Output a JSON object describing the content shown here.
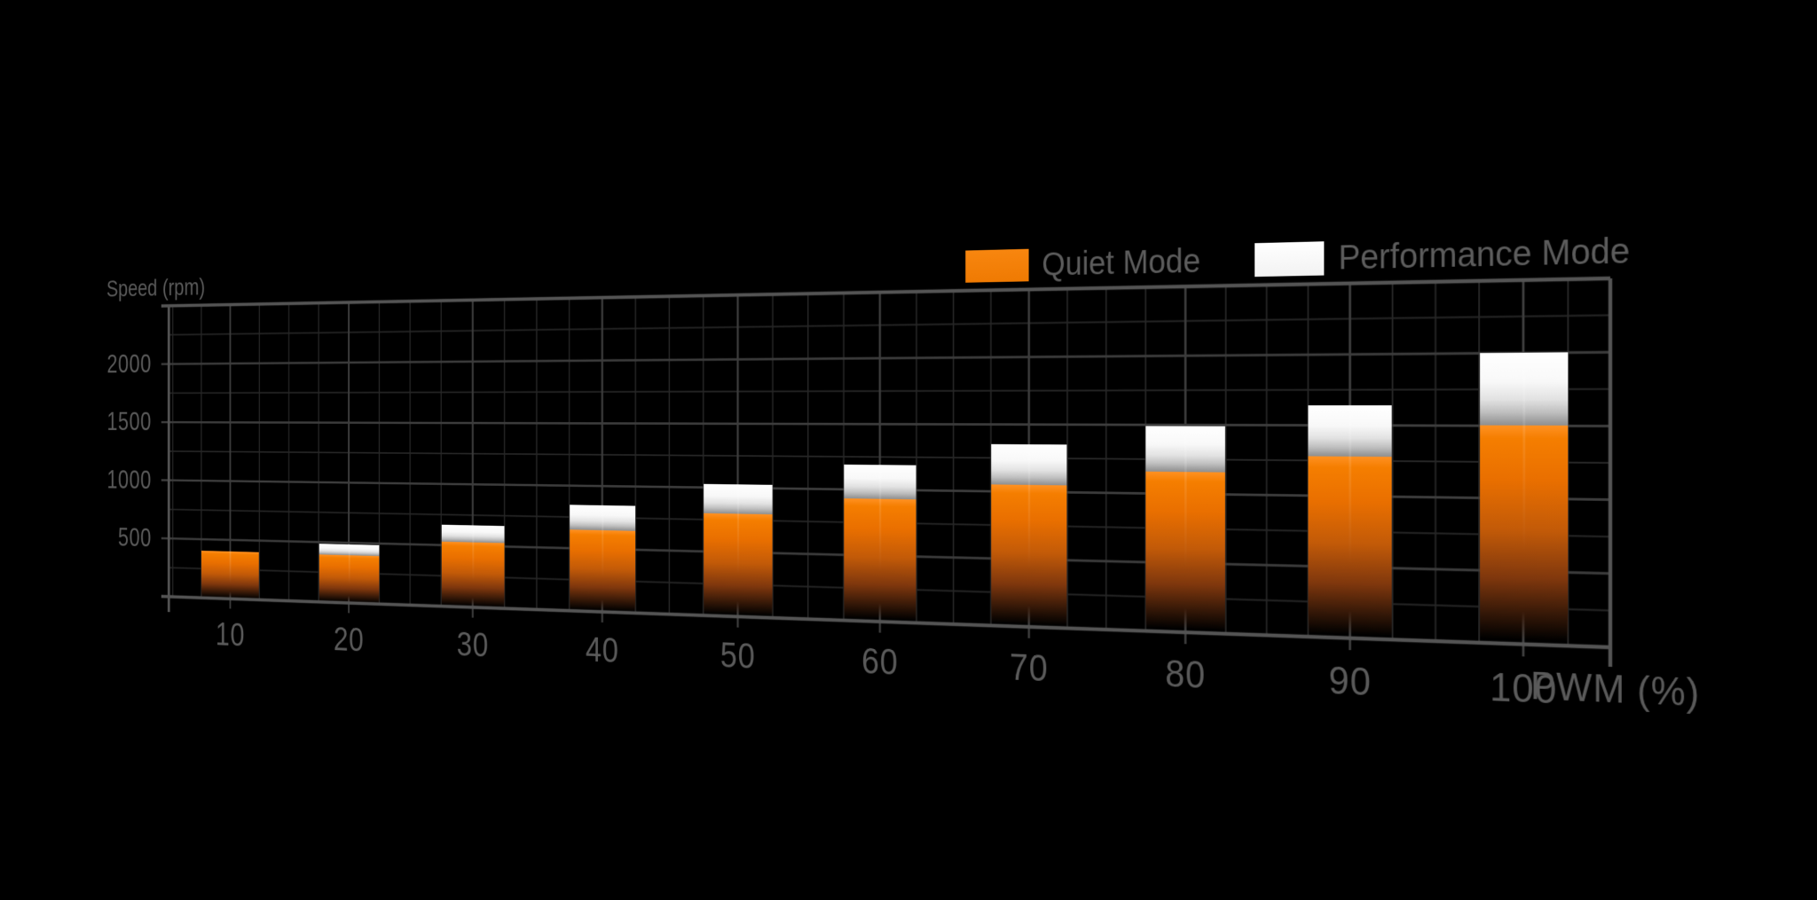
{
  "chart_data": {
    "type": "bar",
    "title": "",
    "xlabel": "PWM (%)",
    "ylabel": "Speed (rpm)",
    "categories": [
      10,
      20,
      30,
      40,
      50,
      60,
      70,
      80,
      90,
      100
    ],
    "series": [
      {
        "name": "Quiet Mode",
        "color": "#f28011",
        "values": [
          400,
          400,
          530,
          650,
          800,
          930,
          1050,
          1160,
          1280,
          1500
        ]
      },
      {
        "name": "Performance Mode",
        "color": "#ffffff",
        "values": [
          400,
          490,
          670,
          850,
          1030,
          1190,
          1350,
          1490,
          1640,
          2000
        ]
      }
    ],
    "ylim": [
      0,
      2500
    ],
    "yticks": [
      500,
      1000,
      1500,
      2000
    ],
    "minor_grid_rpm": 250,
    "minor_grid_pwm": 2.5,
    "grid": "on",
    "legend_position": "top-right",
    "bar_style": "stacked-cap: Performance Mode shown as white cap above Quiet Mode value"
  },
  "colors": {
    "background": "#000000",
    "grid_minor": "#262626",
    "grid_major": "#3c3c3c",
    "grid_border": "#545454",
    "label": "#5a5a5a",
    "bar_orange": "#f28011",
    "bar_white": "#ffffff"
  }
}
